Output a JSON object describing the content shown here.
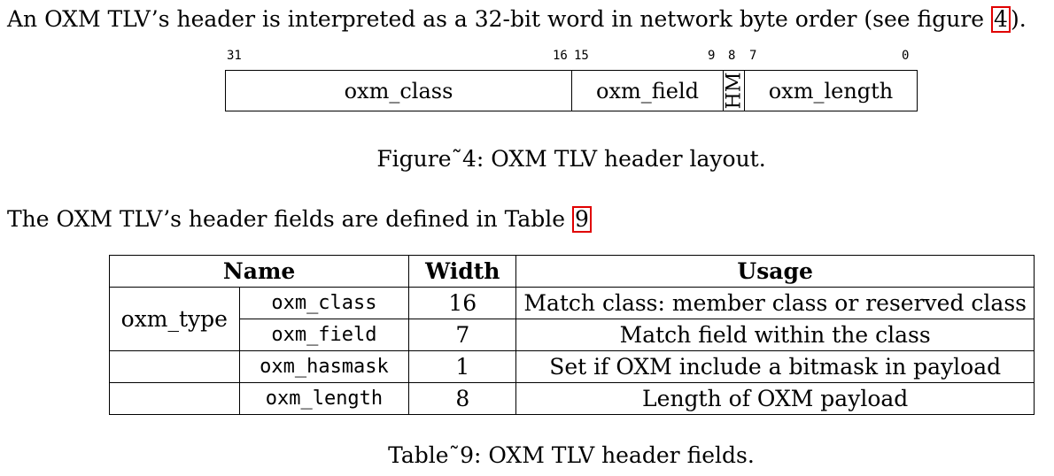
{
  "paragraph1": {
    "before": "An OXM TLV’s header is interpreted as a 32-bit word in network byte order (see figure ",
    "ref": "4",
    "after": ")."
  },
  "figure": {
    "bits": {
      "b31": "31",
      "b16": "16",
      "b15": "15",
      "b9": "9",
      "b8": "8",
      "b7": "7",
      "b0": "0"
    },
    "fields": {
      "class": "oxm_class",
      "field": "oxm_field",
      "hm": "HM",
      "length": "oxm_length"
    },
    "caption": "Figure˜4: OXM TLV header layout."
  },
  "paragraph2": {
    "before": "The OXM TLV’s header fields are defined in Table ",
    "ref": "9"
  },
  "table": {
    "headers": {
      "name": "Name",
      "width": "Width",
      "usage": "Usage"
    },
    "group_label": "oxm_type",
    "rows": [
      {
        "name": "oxm_class",
        "width": "16",
        "usage": "Match class: member class or reserved class"
      },
      {
        "name": "oxm_field",
        "width": "7",
        "usage": "Match field within the class"
      },
      {
        "name": "oxm_hasmask",
        "width": "1",
        "usage": "Set if OXM include a bitmask in payload"
      },
      {
        "name": "oxm_length",
        "width": "8",
        "usage": "Length of OXM payload"
      }
    ],
    "caption": "Table˜9: OXM TLV header fields."
  }
}
